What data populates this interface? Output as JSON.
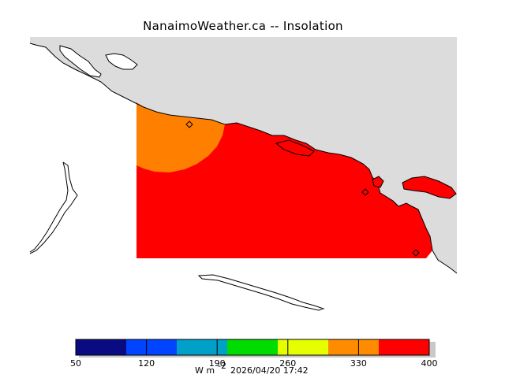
{
  "title": "NanaimoWeather.ca -- Insolation",
  "colors": {
    "land": "#dcdcdc",
    "water": "#ffffff",
    "coast": "#000000",
    "field_red": "#ff0000",
    "field_orange": "#ff8000"
  },
  "markers": [
    {
      "name": "station-marker-nanaimo"
    },
    {
      "name": "station-marker-east"
    },
    {
      "name": "station-marker-south"
    }
  ],
  "colorbar": {
    "bins": [
      {
        "from": 50,
        "to": 100,
        "color": "#0a0a82"
      },
      {
        "from": 100,
        "to": 150,
        "color": "#0044ff"
      },
      {
        "from": 150,
        "to": 200,
        "color": "#00a0c8"
      },
      {
        "from": 200,
        "to": 250,
        "color": "#00dc00"
      },
      {
        "from": 250,
        "to": 300,
        "color": "#e6ff00"
      },
      {
        "from": 300,
        "to": 350,
        "color": "#ff8c00"
      },
      {
        "from": 350,
        "to": 400,
        "color": "#ff0000"
      }
    ],
    "tick_values": [
      50,
      120,
      190,
      260,
      330,
      400
    ],
    "tick_labels": [
      "50",
      "120",
      "190",
      "260",
      "330",
      "400"
    ]
  },
  "units_label": "W m",
  "units_exponent": "-2",
  "timestamp": "2026/04/20 17:42"
}
